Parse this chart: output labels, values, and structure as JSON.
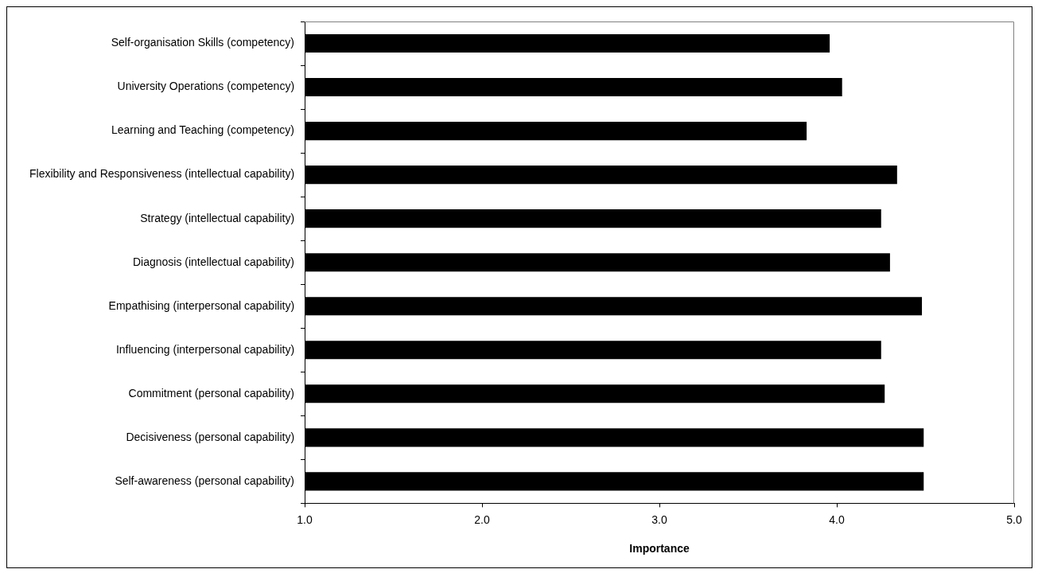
{
  "chart_data": {
    "type": "bar",
    "orientation": "horizontal",
    "xlabel": "Importance",
    "categories": [
      "Self-organisation Skills (competency)",
      "University Operations (competency)",
      "Learning and Teaching (competency)",
      "Flexibility and Responsiveness (intellectual capability)",
      "Strategy (intellectual capability)",
      "Diagnosis (intellectual capability)",
      "Empathising (interpersonal capability)",
      "Influencing (interpersonal capability)",
      "Commitment (personal capability)",
      "Decisiveness (personal capability)",
      "Self-awareness (personal capability)"
    ],
    "values": [
      3.96,
      4.03,
      3.83,
      4.34,
      4.25,
      4.3,
      4.48,
      4.25,
      4.27,
      4.49,
      4.49
    ],
    "color": "#000000",
    "xlim": [
      1,
      5
    ],
    "xticks": [
      {
        "value": 1,
        "label": "1.0"
      },
      {
        "value": 2,
        "label": "2.0"
      },
      {
        "value": 3,
        "label": "3.0"
      },
      {
        "value": 4,
        "label": "4.0"
      },
      {
        "value": 5,
        "label": "5.0"
      }
    ]
  }
}
